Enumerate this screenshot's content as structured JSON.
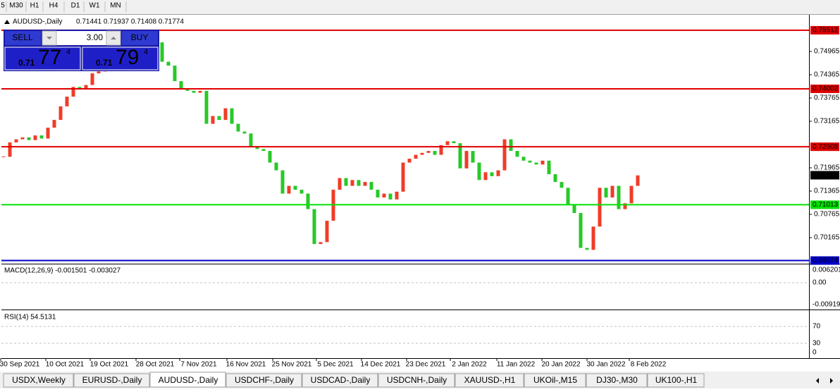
{
  "toolbar": {
    "buttons": [
      "5",
      "M30",
      "H1",
      "H4",
      "D1",
      "W1",
      "MN"
    ]
  },
  "header": {
    "symbol": "AUDUSD-,Daily",
    "ohlc": "0.71441 0.71937 0.71408 0.71774"
  },
  "trade_panel": {
    "sell": "SELL",
    "buy": "BUY",
    "volume": "3.00",
    "sell_price": {
      "prefix": "0.71",
      "big": "77",
      "small": "4"
    },
    "buy_price": {
      "prefix": "0.71",
      "big": "79",
      "small": "4"
    }
  },
  "chart": {
    "type": "candlestick",
    "ylim": [
      0.69493,
      0.75892
    ],
    "yticks": [
      0.74965,
      0.74365,
      0.73765,
      0.73165,
      0.71965,
      0.71365,
      0.70765,
      0.70165
    ],
    "up_color": "#f03c28",
    "down_color": "#28c828",
    "closes": [
      0.7225,
      0.7262,
      0.727,
      0.7275,
      0.7268,
      0.728,
      0.7272,
      0.73,
      0.732,
      0.7355,
      0.738,
      0.7405,
      0.74,
      0.741,
      0.744,
      0.7445,
      0.7452,
      0.746,
      0.747,
      0.7475,
      0.748,
      0.749,
      0.75,
      0.751,
      0.752,
      0.747,
      0.746,
      0.742,
      0.74,
      0.7395,
      0.739,
      0.7395,
      0.731,
      0.733,
      0.732,
      0.735,
      0.731,
      0.729,
      0.7285,
      0.725,
      0.7245,
      0.724,
      0.721,
      0.719,
      0.713,
      0.715,
      0.714,
      0.713,
      0.709,
      0.7,
      0.7005,
      0.706,
      0.714,
      0.717,
      0.715,
      0.7165,
      0.715,
      0.716,
      0.714,
      0.712,
      0.713,
      0.7115,
      0.7135,
      0.721,
      0.722,
      0.723,
      0.7235,
      0.724,
      0.723,
      0.7255,
      0.7265,
      0.726,
      0.7195,
      0.724,
      0.721,
      0.7165,
      0.7185,
      0.7175,
      0.719,
      0.727,
      0.724,
      0.7225,
      0.7215,
      0.721,
      0.7205,
      0.7215,
      0.718,
      0.716,
      0.7145,
      0.71,
      0.708,
      0.699,
      0.6985,
      0.7045,
      0.7145,
      0.712,
      0.715,
      0.709,
      0.7105,
      0.715,
      0.7177
    ],
    "levels": [
      {
        "value": 0.75512,
        "color": "#e00000"
      },
      {
        "value": 0.74002,
        "color": "#e00000"
      },
      {
        "value": 0.72508,
        "color": "#e00000"
      },
      {
        "value": 0.71013,
        "color": "#00e000"
      },
      {
        "value": 0.69574,
        "color": "#0000c8"
      }
    ],
    "current_price": 0.71774
  },
  "macd": {
    "label": "MACD(12,26,9) -0.001501 -0.003027",
    "ticks": [
      "0.006201",
      "0.00",
      "-0.009197"
    ]
  },
  "rsi": {
    "label": "RSI(14) 54.5131",
    "ticks": [
      "70",
      "30",
      "0"
    ]
  },
  "dates": [
    "30 Sep 2021",
    "10 Oct 2021",
    "19 Oct 2021",
    "28 Oct 2021",
    "7 Nov 2021",
    "16 Nov 2021",
    "25 Nov 2021",
    "5 Dec 2021",
    "14 Dec 2021",
    "23 Dec 2021",
    "2 Jan 2022",
    "11 Jan 2022",
    "20 Jan 2022",
    "30 Jan 2022",
    "8 Feb 2022"
  ],
  "tabs": {
    "items": [
      "USDX,Weekly",
      "EURUSD-,Daily",
      "AUDUSD-,Daily",
      "USDCHF-,Daily",
      "USDCAD-,Daily",
      "USDCNH-,Daily",
      "XAUUSD-,H1",
      "UKOil-,M15",
      "DJ30-,M30",
      "UK100-,H1"
    ],
    "active": 2
  }
}
